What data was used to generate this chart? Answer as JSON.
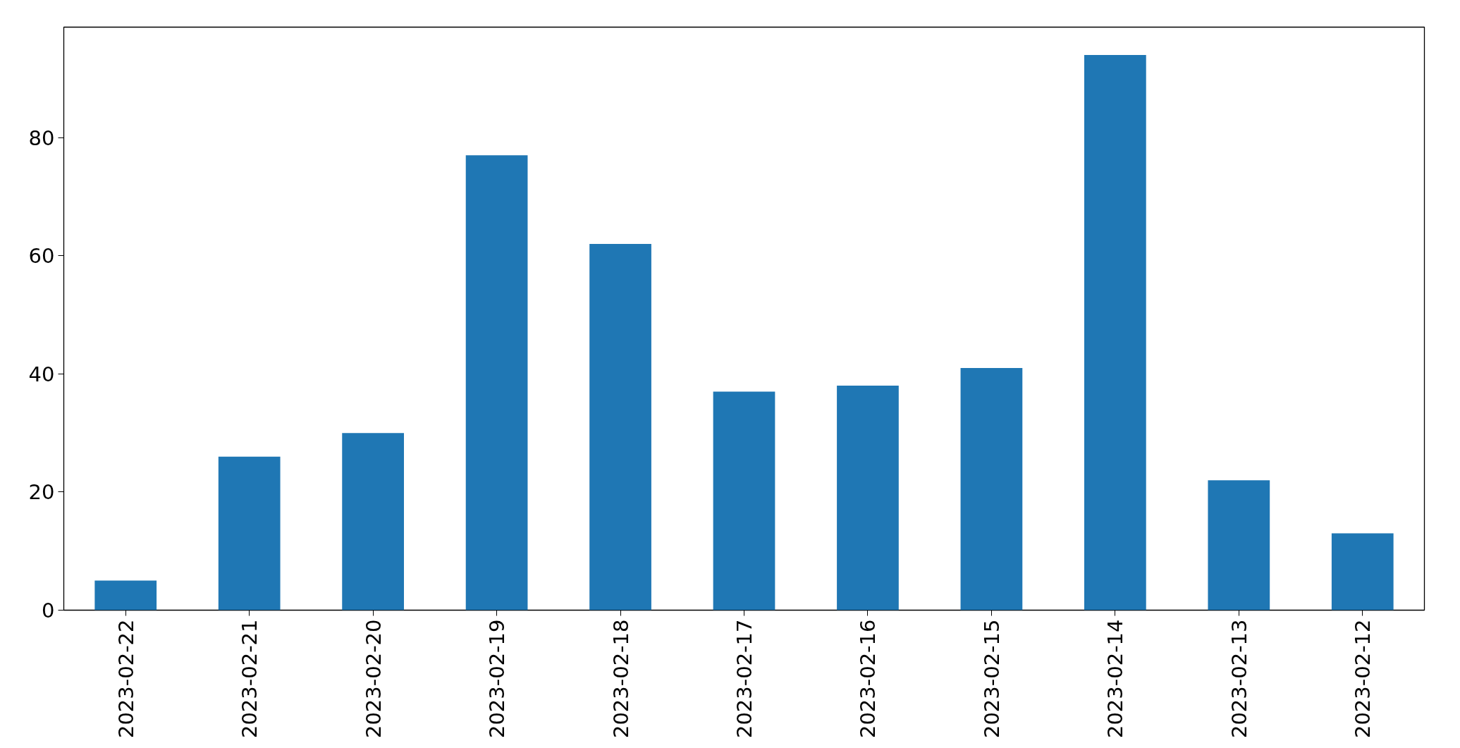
{
  "chart_data": {
    "type": "bar",
    "categories": [
      "2023-02-22",
      "2023-02-21",
      "2023-02-20",
      "2023-02-19",
      "2023-02-18",
      "2023-02-17",
      "2023-02-16",
      "2023-02-15",
      "2023-02-14",
      "2023-02-13",
      "2023-02-12"
    ],
    "values": [
      5,
      26,
      30,
      77,
      62,
      37,
      38,
      41,
      94,
      22,
      13
    ],
    "color": "#1f77b4",
    "ylim": [
      0,
      98.7
    ],
    "yticks": [
      0,
      20,
      40,
      60,
      80
    ],
    "grid": false
  }
}
